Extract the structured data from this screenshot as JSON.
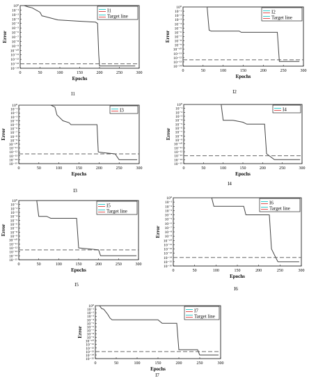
{
  "colors": {
    "curve": "#444444",
    "target": "#666666",
    "legend_swatch_cyan": "#33cccc",
    "legend_swatch_red": "#e05050"
  },
  "chart_data": [
    {
      "type": "line",
      "panel_label": "I1",
      "xlabel": "Epochs",
      "ylabel": "Error",
      "xlim": [
        0,
        300
      ],
      "x_ticks": [
        0,
        50,
        100,
        150,
        200,
        250,
        300
      ],
      "y_tick_labels": [
        "10⁰",
        "10⁻¹",
        "10⁻²",
        "10⁻³",
        "10⁻⁴",
        "10⁻⁵",
        "10⁻⁶",
        "10⁻⁷",
        "10⁻⁸",
        "10⁻⁹",
        "10⁻¹⁰",
        "10⁻¹¹",
        "10⁻¹²",
        "10⁻¹³",
        "10⁻¹⁴"
      ],
      "yscale": "log",
      "ylim_exponent": [
        -14,
        0
      ],
      "legend": [
        "I1",
        "Target line"
      ],
      "legend_position": "top-right",
      "target_exponent": -13,
      "series": [
        {
          "name": "I1",
          "x": [
            0,
            10,
            20,
            30,
            50,
            55,
            60,
            95,
            150,
            190,
            195,
            198,
            200,
            290
          ],
          "y_exponent": [
            0,
            0,
            -0.3,
            -0.5,
            -1.5,
            -2.3,
            -2.4,
            -3.2,
            -3.5,
            -3.7,
            -4,
            -11,
            -13.5,
            -13.5
          ]
        }
      ]
    },
    {
      "type": "line",
      "panel_label": "I2",
      "xlabel": "Epochs",
      "ylabel": "Error",
      "xlim": [
        0,
        300
      ],
      "x_ticks": [
        0,
        50,
        100,
        150,
        200,
        250,
        300
      ],
      "y_tick_labels": [
        "10⁰",
        "10⁻¹",
        "10⁻²",
        "10⁻³",
        "10⁻⁴",
        "10⁻⁵",
        "10⁻⁶",
        "10⁻⁷",
        "10⁻⁸",
        "10⁻⁹",
        "10⁻¹⁰",
        "10⁻¹¹",
        "10⁻¹²",
        "10⁻¹³",
        "10⁻¹⁴"
      ],
      "yscale": "log",
      "ylim_exponent": [
        -14,
        0
      ],
      "legend": [
        "I2",
        "Target line"
      ],
      "legend_position": "top-right",
      "target_exponent": -12.5,
      "series": [
        {
          "name": "I2",
          "x": [
            0,
            60,
            65,
            70,
            140,
            145,
            235,
            240,
            290
          ],
          "y_exponent": [
            0,
            0,
            -5.5,
            -5.7,
            -5.7,
            -6,
            -6,
            -12.9,
            -12.9
          ]
        }
      ]
    },
    {
      "type": "line",
      "panel_label": "I3",
      "xlabel": "Epochs",
      "ylabel": "Error",
      "xlim": [
        0,
        300
      ],
      "x_ticks": [
        0,
        50,
        100,
        150,
        200,
        250,
        300
      ],
      "y_tick_labels": [
        "10⁰",
        "10⁻¹",
        "10⁻²",
        "10⁻³",
        "10⁻⁴",
        "10⁻⁵",
        "10⁻⁶",
        "10⁻⁷",
        "10⁻⁸",
        "10⁻⁹",
        "10⁻¹⁰",
        "10⁻¹¹",
        "10⁻¹²",
        "10⁻¹³",
        "10⁻¹⁴",
        "10⁻¹⁵"
      ],
      "yscale": "log",
      "ylim_exponent": [
        -15,
        0
      ],
      "legend": [
        "I3"
      ],
      "legend_position": "top-right",
      "target_exponent": -12.5,
      "series": [
        {
          "name": "I3",
          "x": [
            0,
            80,
            90,
            95,
            100,
            110,
            125,
            130,
            195,
            198,
            210,
            240,
            250,
            295
          ],
          "y_exponent": [
            0,
            0,
            -0.5,
            -2.5,
            -3,
            -4,
            -4.5,
            -5,
            -5,
            -12,
            -12.2,
            -12.5,
            -14,
            -14
          ]
        }
      ]
    },
    {
      "type": "line",
      "panel_label": "I4",
      "xlabel": "Epochs",
      "ylabel": "Error",
      "xlim": [
        0,
        300
      ],
      "x_ticks": [
        0,
        50,
        100,
        150,
        200,
        250,
        300
      ],
      "y_tick_labels": [
        "10⁰",
        "10⁻¹",
        "10⁻²",
        "10⁻³",
        "10⁻⁴",
        "10⁻⁵",
        "10⁻⁶",
        "10⁻⁷",
        "10⁻⁸",
        "10⁻⁹",
        "10⁻¹⁰",
        "10⁻¹¹",
        "10⁻¹²",
        "10⁻¹³",
        "10⁻¹⁴",
        "10⁻¹⁵"
      ],
      "yscale": "log",
      "ylim_exponent": [
        -15,
        0
      ],
      "legend": [
        "I4"
      ],
      "legend_position": "top-right",
      "target_exponent": -13,
      "series": [
        {
          "name": "I4",
          "x": [
            0,
            95,
            100,
            125,
            150,
            160,
            205,
            210,
            230,
            295
          ],
          "y_exponent": [
            0,
            0,
            -4,
            -4,
            -4.5,
            -5,
            -5,
            -12.5,
            -14,
            -14
          ]
        }
      ]
    },
    {
      "type": "line",
      "panel_label": "I5",
      "xlabel": "Epochs",
      "ylabel": "Error",
      "xlim": [
        0,
        300
      ],
      "x_ticks": [
        0,
        50,
        100,
        150,
        200,
        250,
        300
      ],
      "y_tick_labels": [
        "10⁰",
        "10⁻¹",
        "10⁻²",
        "10⁻³",
        "10⁻⁴",
        "10⁻⁵",
        "10⁻⁶",
        "10⁻⁷",
        "10⁻⁸",
        "10⁻⁹",
        "10⁻¹⁰",
        "10⁻¹¹",
        "10⁻¹²",
        "10⁻¹³",
        "10⁻¹⁴",
        "10⁻¹⁵"
      ],
      "yscale": "log",
      "ylim_exponent": [
        -15,
        0
      ],
      "legend": [
        "I5",
        "Target line"
      ],
      "legend_position": "top-right",
      "target_exponent": -12.5,
      "series": [
        {
          "name": "I5",
          "x": [
            0,
            45,
            50,
            70,
            80,
            145,
            150,
            200,
            205,
            295
          ],
          "y_exponent": [
            0,
            0,
            -4,
            -4,
            -4.5,
            -4.5,
            -12,
            -12.5,
            -14,
            -14
          ]
        }
      ]
    },
    {
      "type": "line",
      "panel_label": "I6",
      "xlabel": "Epochs",
      "ylabel": "Error",
      "xlim": [
        0,
        300
      ],
      "x_ticks": [
        0,
        50,
        100,
        150,
        200,
        250,
        300
      ],
      "y_tick_labels": [
        "10⁰",
        "10⁻¹",
        "10⁻²",
        "10⁻³",
        "10⁻⁴",
        "10⁻⁵",
        "10⁻⁶",
        "10⁻⁷",
        "10⁻⁸",
        "10⁻⁹",
        "10⁻¹⁰",
        "10⁻¹¹",
        "10⁻¹²",
        "10⁻¹³",
        "10⁻¹⁴",
        "10⁻¹⁵",
        "10⁻¹⁶"
      ],
      "yscale": "log",
      "ylim_exponent": [
        -16,
        0
      ],
      "legend": [
        "I6",
        "Target line"
      ],
      "legend_position": "top-right",
      "target_exponent": -14,
      "series": [
        {
          "name": "I6",
          "x": [
            0,
            90,
            95,
            165,
            170,
            225,
            230,
            240,
            245,
            295
          ],
          "y_exponent": [
            0,
            0,
            -2,
            -2,
            -4,
            -4,
            -12,
            -14,
            -15,
            -15
          ]
        }
      ]
    },
    {
      "type": "line",
      "panel_label": "I7",
      "xlabel": "Epochs",
      "ylabel": "Error",
      "xlim": [
        0,
        300
      ],
      "x_ticks": [
        0,
        50,
        100,
        150,
        200,
        250,
        300
      ],
      "y_tick_labels": [
        "10⁰",
        "10⁻¹",
        "10⁻²",
        "10⁻³",
        "10⁻⁴",
        "10⁻⁵",
        "10⁻⁶",
        "10⁻⁷",
        "10⁻⁸",
        "10⁻⁹",
        "10⁻¹⁰",
        "10⁻¹¹",
        "10⁻¹²",
        "10⁻¹³",
        "10⁻¹⁴",
        "10⁻¹⁵"
      ],
      "yscale": "log",
      "ylim_exponent": [
        -15,
        0
      ],
      "legend": [
        "I7",
        "Target line"
      ],
      "legend_position": "top-right",
      "target_exponent": -13,
      "series": [
        {
          "name": "I7",
          "x": [
            0,
            10,
            15,
            20,
            30,
            35,
            40,
            150,
            160,
            195,
            200,
            245,
            250,
            295
          ],
          "y_exponent": [
            0,
            0,
            -0.8,
            -1,
            -2.5,
            -3.5,
            -4,
            -4,
            -5,
            -5,
            -12.5,
            -12.5,
            -14,
            -14
          ]
        }
      ]
    }
  ]
}
